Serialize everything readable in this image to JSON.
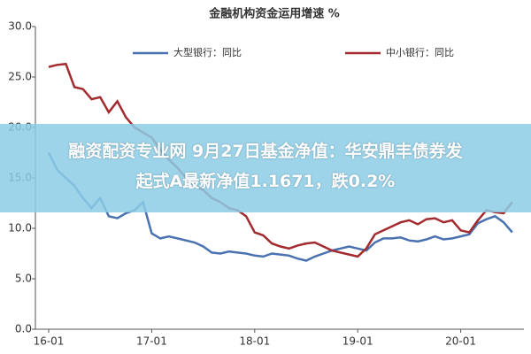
{
  "chart_data": {
    "type": "line",
    "title": "金融机构资金运用增速 %",
    "categories": [
      "16-01",
      null,
      null,
      null,
      null,
      null,
      null,
      null,
      null,
      null,
      null,
      null,
      "17-01",
      null,
      null,
      null,
      null,
      null,
      null,
      null,
      null,
      null,
      null,
      null,
      "18-01",
      null,
      null,
      null,
      null,
      null,
      null,
      null,
      null,
      null,
      null,
      null,
      "19-01",
      null,
      null,
      null,
      null,
      null,
      null,
      null,
      null,
      null,
      null,
      null,
      "20-01",
      null,
      null,
      null,
      null,
      null,
      null
    ],
    "series": [
      {
        "name": "大型银行：同比",
        "color": "#4a72b0",
        "values": [
          17.5,
          15.8,
          15.0,
          14.2,
          13.0,
          12.0,
          13.0,
          11.2,
          11.0,
          11.5,
          11.8,
          12.6,
          9.5,
          9.0,
          9.2,
          9.0,
          8.8,
          8.6,
          8.2,
          7.6,
          7.5,
          7.7,
          7.6,
          7.5,
          7.3,
          7.2,
          7.5,
          7.4,
          7.3,
          7.0,
          6.8,
          7.2,
          7.5,
          7.8,
          8.0,
          8.2,
          8.0,
          7.8,
          8.6,
          9.0,
          9.0,
          9.1,
          8.8,
          8.7,
          8.9,
          9.2,
          8.9,
          9.0,
          9.2,
          9.4,
          10.5,
          10.9,
          11.2,
          10.6,
          9.6
        ]
      },
      {
        "name": "中小银行：同比",
        "color": "#a32a2e",
        "values": [
          26.0,
          26.2,
          26.3,
          24.0,
          23.8,
          22.8,
          23.0,
          21.5,
          22.6,
          21.0,
          20.0,
          19.5,
          19.0,
          17.8,
          16.8,
          16.0,
          15.0,
          14.2,
          13.8,
          13.0,
          12.6,
          12.0,
          11.8,
          11.2,
          9.6,
          9.3,
          8.5,
          8.2,
          8.0,
          8.3,
          8.5,
          8.6,
          8.2,
          7.8,
          7.6,
          7.4,
          7.2,
          8.0,
          9.4,
          9.8,
          10.2,
          10.6,
          10.8,
          10.4,
          10.9,
          11.0,
          10.6,
          10.8,
          9.8,
          9.6,
          10.8,
          11.8,
          11.6,
          11.5,
          12.6
        ]
      }
    ],
    "ylim": [
      0,
      30
    ],
    "yticks": [
      {
        "value": 0,
        "label": "0.0"
      },
      {
        "value": 5,
        "label": "5.0"
      },
      {
        "value": 10,
        "label": "10.0"
      },
      {
        "value": 15,
        "label": "15.0"
      },
      {
        "value": 20,
        "label": "20.0"
      },
      {
        "value": 25,
        "label": "25.0"
      },
      {
        "value": 30,
        "label": "30.0"
      }
    ],
    "grid": false
  },
  "banner": {
    "lines": [
      "融资配资专业网 9月27日基金净值：华安鼎丰债券发",
      "起式A最新净值1.1671，跌0.2%"
    ]
  }
}
